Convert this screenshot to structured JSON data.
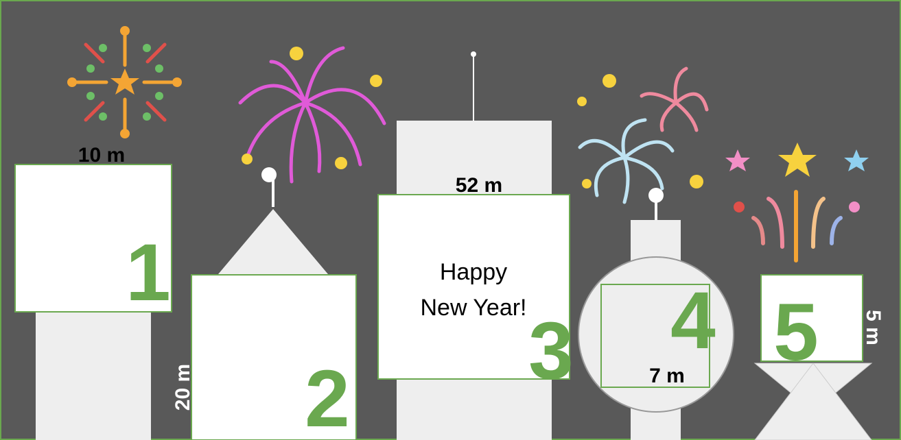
{
  "buildings": [
    {
      "number": "1",
      "height": "10 m"
    },
    {
      "number": "2",
      "height": "20 m"
    },
    {
      "number": "3",
      "height": "52 m",
      "message": [
        "Happy",
        "New Year!"
      ]
    },
    {
      "number": "4",
      "height": "7 m"
    },
    {
      "number": "5",
      "height": "5 m"
    }
  ]
}
